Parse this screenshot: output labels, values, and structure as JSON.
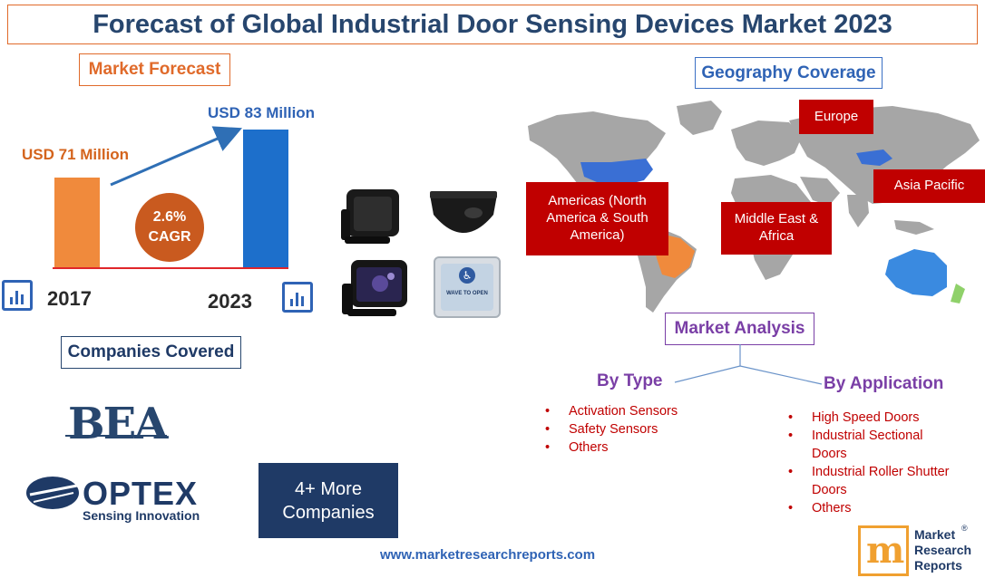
{
  "title": "Forecast of Global Industrial Door Sensing Devices Market 2023",
  "market_forecast": {
    "heading": "Market Forecast",
    "label_2017": "USD 71 Million",
    "label_2023": "USD 83 Million",
    "cagr_value": "2.6%",
    "cagr_label": "CAGR",
    "year_2017": "2017",
    "year_2023": "2023"
  },
  "chart_data": {
    "type": "bar",
    "categories": [
      "2017",
      "2023"
    ],
    "values": [
      71,
      83
    ],
    "title": "",
    "xlabel": "",
    "ylabel": "",
    "unit": "USD Million",
    "ylim": [
      0,
      90
    ],
    "colors": [
      "#f08a3c",
      "#1d6fcb"
    ]
  },
  "geography": {
    "heading": "Geography Coverage",
    "regions": {
      "europe": "Europe",
      "americas": "Americas (North America & South America)",
      "middle_east_africa": "Middle East & Africa",
      "asia_pacific": "Asia Pacific"
    }
  },
  "companies": {
    "heading": "Companies Covered",
    "bea_logo": "BEA",
    "optex_logo": "OPTEX",
    "optex_tagline": "Sensing Innovation",
    "more": "4+ More Companies"
  },
  "analysis": {
    "heading": "Market Analysis",
    "by_type": {
      "heading": "By Type",
      "items": [
        "Activation Sensors",
        "Safety Sensors",
        "Others"
      ]
    },
    "by_application": {
      "heading": "By Application",
      "items": [
        "High Speed Doors",
        "Industrial Sectional Doors",
        "Industrial Roller Shutter Doors",
        "Others"
      ]
    }
  },
  "sensor_images": {
    "push_plate_text": "WAVE TO OPEN"
  },
  "footer": {
    "website": "www.marketresearchreports.com",
    "logo_line1": "Market",
    "logo_line2": "Research",
    "logo_line3": "Reports",
    "logo_mark": "®"
  }
}
